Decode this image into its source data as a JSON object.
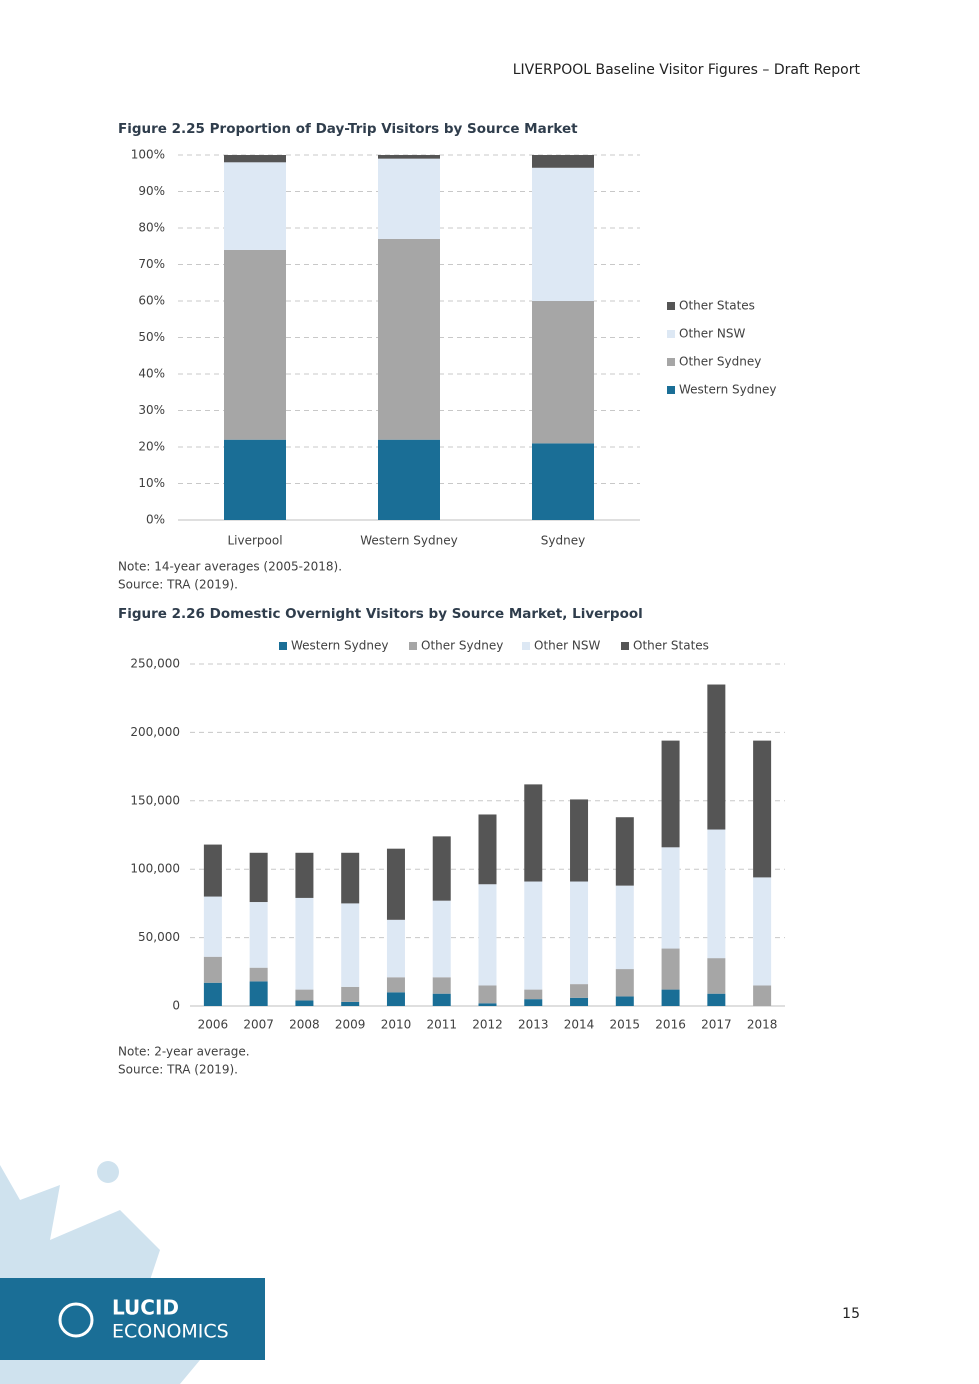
{
  "header": "LIVERPOOL Baseline Visitor Figures – Draft Report",
  "page_number": "15",
  "logo": {
    "line1": "LUCID",
    "line2": "ECONOMICS"
  },
  "chart_data": [
    {
      "type": "bar",
      "stacked": true,
      "title": "Figure 2.25 Proportion of Day-Trip Visitors by Source Market",
      "note": "Note: 14-year averages (2005-2018).",
      "source": "Source: TRA (2019).",
      "categories": [
        "Liverpool",
        "Western Sydney",
        "Sydney"
      ],
      "series": [
        {
          "name": "Western Sydney",
          "color": "#1a6e96",
          "values": [
            22,
            22,
            21
          ]
        },
        {
          "name": "Other Sydney",
          "color": "#a6a6a6",
          "values": [
            52,
            55,
            39
          ]
        },
        {
          "name": "Other NSW",
          "color": "#dde8f4",
          "values": [
            24,
            22,
            36.5
          ]
        },
        {
          "name": "Other States",
          "color": "#555555",
          "values": [
            2,
            1,
            3.5
          ]
        }
      ],
      "ylim": [
        0,
        100
      ],
      "yticks": [
        {
          "value": 0,
          "label": "0%"
        },
        {
          "value": 10,
          "label": "10%"
        },
        {
          "value": 20,
          "label": "20%"
        },
        {
          "value": 30,
          "label": "30%"
        },
        {
          "value": 40,
          "label": "40%"
        },
        {
          "value": 50,
          "label": "50%"
        },
        {
          "value": 60,
          "label": "60%"
        },
        {
          "value": 70,
          "label": "70%"
        },
        {
          "value": 80,
          "label": "80%"
        },
        {
          "value": 90,
          "label": "90%"
        },
        {
          "value": 100,
          "label": "100%"
        }
      ],
      "grid": true,
      "legend": "right"
    },
    {
      "type": "bar",
      "stacked": true,
      "title": "Figure 2.26 Domestic Overnight Visitors by Source Market, Liverpool",
      "note": "Note: 2-year average.",
      "source": "Source: TRA (2019).",
      "categories": [
        "2006",
        "2007",
        "2008",
        "2009",
        "2010",
        "2011",
        "2012",
        "2013",
        "2014",
        "2015",
        "2016",
        "2017",
        "2018"
      ],
      "series": [
        {
          "name": "Western Sydney",
          "color": "#1a6e96",
          "values": [
            17000,
            18000,
            4000,
            3000,
            10000,
            9000,
            2000,
            5000,
            6000,
            7000,
            12000,
            9000,
            0
          ]
        },
        {
          "name": "Other Sydney",
          "color": "#a6a6a6",
          "values": [
            19000,
            10000,
            8000,
            11000,
            11000,
            12000,
            13000,
            7000,
            10000,
            20000,
            30000,
            26000,
            15000
          ]
        },
        {
          "name": "Other NSW",
          "color": "#dde8f4",
          "values": [
            44000,
            48000,
            67000,
            61000,
            42000,
            56000,
            74000,
            79000,
            75000,
            61000,
            74000,
            94000,
            79000
          ]
        },
        {
          "name": "Other States",
          "color": "#555555",
          "values": [
            38000,
            36000,
            33000,
            37000,
            52000,
            47000,
            51000,
            71000,
            60000,
            50000,
            78000,
            106000,
            100000
          ]
        }
      ],
      "ylim": [
        0,
        250000
      ],
      "yticks": [
        0,
        {
          "value": 50000,
          "label": "50,000"
        },
        {
          "value": 100000,
          "label": "100,000"
        },
        {
          "value": 150000,
          "label": "150,000"
        },
        {
          "value": 200000,
          "label": "200,000"
        },
        {
          "value": 250000,
          "label": "250,000"
        }
      ],
      "grid": true,
      "legend": "top"
    }
  ]
}
